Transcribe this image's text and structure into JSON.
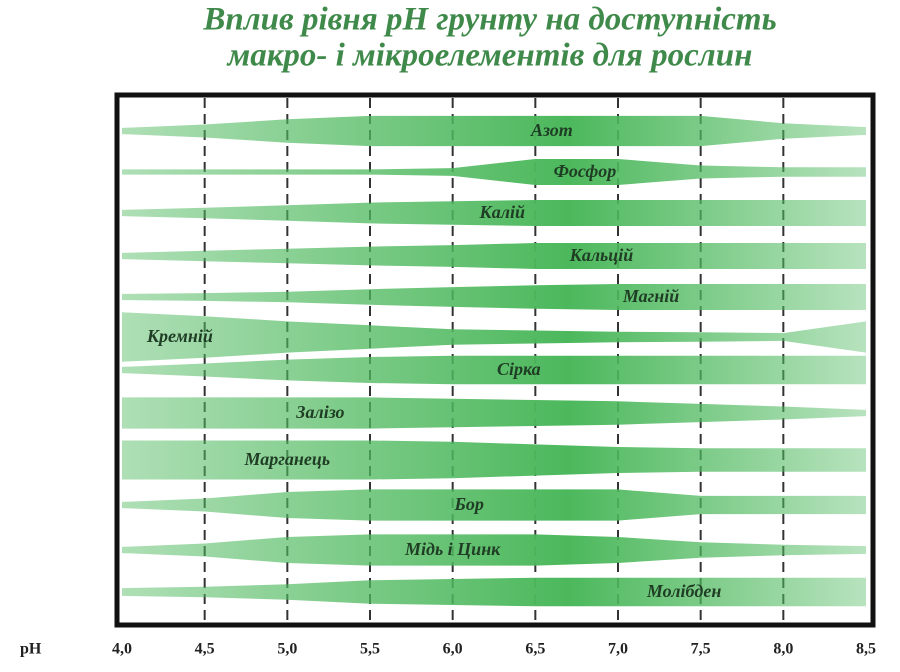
{
  "chart_data": {
    "type": "band",
    "title": [
      "Вплив рівня pH грунту на доступність",
      "макро- і мікроелементів для рослин"
    ],
    "x_label": "pH",
    "x": [
      4.0,
      4.5,
      5.0,
      5.5,
      6.0,
      6.5,
      7.0,
      7.5,
      8.0,
      8.5
    ],
    "xlim": [
      4.0,
      8.5
    ],
    "xticks": [
      {
        "value": 4.0,
        "label": "4,0"
      },
      {
        "value": 4.5,
        "label": "4,5"
      },
      {
        "value": 5.0,
        "label": "5,0"
      },
      {
        "value": 5.5,
        "label": "5,5"
      },
      {
        "value": 6.0,
        "label": "6,0"
      },
      {
        "value": 6.5,
        "label": "6,5"
      },
      {
        "value": 7.0,
        "label": "7,0"
      },
      {
        "value": 7.5,
        "label": "7,5"
      },
      {
        "value": 8.0,
        "label": "8,0"
      },
      {
        "value": 8.5,
        "label": "8,5"
      }
    ],
    "grid": true,
    "series": [
      {
        "name": "Азот",
        "color": "#4cb85c",
        "values": [
          0.12,
          0.25,
          0.45,
          0.58,
          0.58,
          0.58,
          0.58,
          0.58,
          0.3,
          0.15
        ]
      },
      {
        "name": "Фосфор",
        "color": "#4cb85c",
        "values": [
          0.1,
          0.1,
          0.1,
          0.1,
          0.15,
          0.5,
          0.5,
          0.25,
          0.18,
          0.18
        ]
      },
      {
        "name": "Калій",
        "color": "#4cb85c",
        "values": [
          0.12,
          0.2,
          0.3,
          0.4,
          0.45,
          0.5,
          0.5,
          0.5,
          0.5,
          0.5
        ]
      },
      {
        "name": "Кальцій",
        "color": "#4cb85c",
        "values": [
          0.12,
          0.2,
          0.28,
          0.36,
          0.42,
          0.5,
          0.5,
          0.5,
          0.5,
          0.5
        ]
      },
      {
        "name": "Магній",
        "color": "#4cb85c",
        "values": [
          0.12,
          0.15,
          0.2,
          0.3,
          0.38,
          0.45,
          0.5,
          0.5,
          0.5,
          0.5
        ]
      },
      {
        "name": "Кремній",
        "color": "#4cb85c",
        "values": [
          0.95,
          0.8,
          0.6,
          0.45,
          0.3,
          0.25,
          0.2,
          0.18,
          0.15,
          0.6
        ]
      },
      {
        "name": "Сірка",
        "color": "#4cb85c",
        "values": [
          0.12,
          0.25,
          0.4,
          0.5,
          0.55,
          0.55,
          0.55,
          0.55,
          0.55,
          0.55
        ]
      },
      {
        "name": "Залізо",
        "color": "#4cb85c",
        "values": [
          0.6,
          0.6,
          0.6,
          0.6,
          0.55,
          0.5,
          0.45,
          0.35,
          0.25,
          0.12
        ]
      },
      {
        "name": "Марганець",
        "color": "#4cb85c",
        "values": [
          0.75,
          0.75,
          0.75,
          0.75,
          0.7,
          0.6,
          0.5,
          0.45,
          0.45,
          0.45
        ]
      },
      {
        "name": "Бор",
        "color": "#4cb85c",
        "values": [
          0.12,
          0.25,
          0.5,
          0.6,
          0.6,
          0.6,
          0.6,
          0.35,
          0.35,
          0.35
        ]
      },
      {
        "name": "Мідь і Цинк",
        "color": "#4cb85c",
        "values": [
          0.12,
          0.25,
          0.5,
          0.6,
          0.6,
          0.6,
          0.5,
          0.3,
          0.2,
          0.15
        ]
      },
      {
        "name": "Молібден",
        "color": "#4cb85c",
        "values": [
          0.15,
          0.2,
          0.3,
          0.45,
          0.5,
          0.55,
          0.55,
          0.55,
          0.55,
          0.55
        ]
      }
    ]
  }
}
